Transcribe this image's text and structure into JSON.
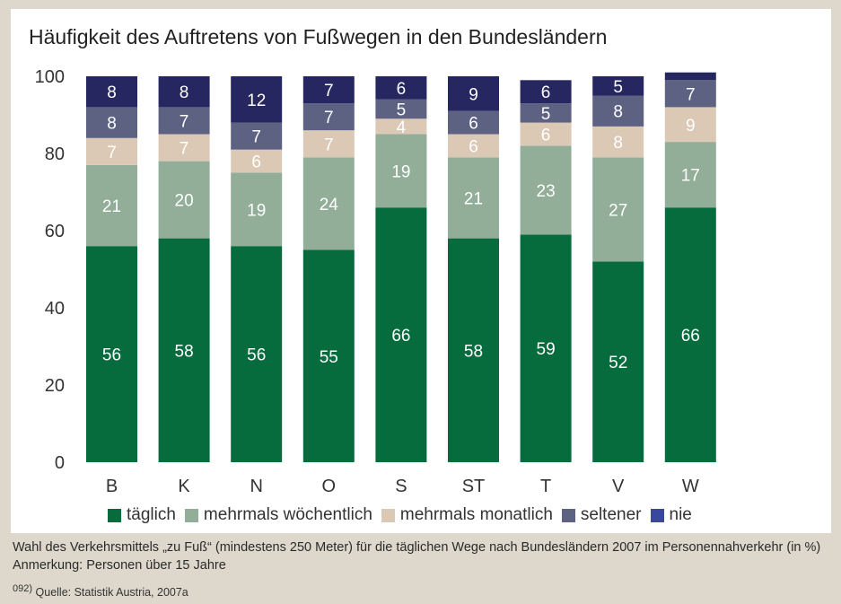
{
  "chart_data": {
    "type": "bar",
    "stacked": true,
    "title": "Häufigkeit des Auftretens von Fußwegen in den Bundesländern",
    "xlabel": "",
    "ylabel": "",
    "ylim": [
      0,
      100
    ],
    "yticks": [
      0,
      20,
      40,
      60,
      80,
      100
    ],
    "grid": false,
    "legend_position": "bottom",
    "categories": [
      "B",
      "K",
      "N",
      "O",
      "S",
      "ST",
      "T",
      "V",
      "W"
    ],
    "series": [
      {
        "name": "täglich",
        "color": "#066b3d",
        "values": [
          56,
          58,
          56,
          55,
          66,
          58,
          59,
          52,
          66
        ]
      },
      {
        "name": "mehrmals wöchentlich",
        "color": "#92ae98",
        "values": [
          21,
          20,
          19,
          24,
          19,
          21,
          23,
          27,
          17
        ]
      },
      {
        "name": "mehrmals monatlich",
        "color": "#dbc9b6",
        "values": [
          7,
          7,
          6,
          7,
          4,
          6,
          6,
          8,
          9
        ]
      },
      {
        "name": "seltener",
        "color": "#5d6283",
        "values": [
          8,
          7,
          7,
          7,
          5,
          6,
          5,
          8,
          7
        ]
      },
      {
        "name": "nie",
        "color": "#262761",
        "values": [
          8,
          8,
          12,
          7,
          6,
          9,
          6,
          5,
          2
        ]
      }
    ]
  },
  "caption": "Wahl des Verkehrsmittels „zu Fuß“ (mindestens 250 Meter) für die täglichen Wege nach Bundesländern 2007 im Personennahverkehr (in %) Anmerkung: Personen über 15 Jahre",
  "source_number": "092)",
  "source": "Quelle:  Statistik Austria, 2007a"
}
